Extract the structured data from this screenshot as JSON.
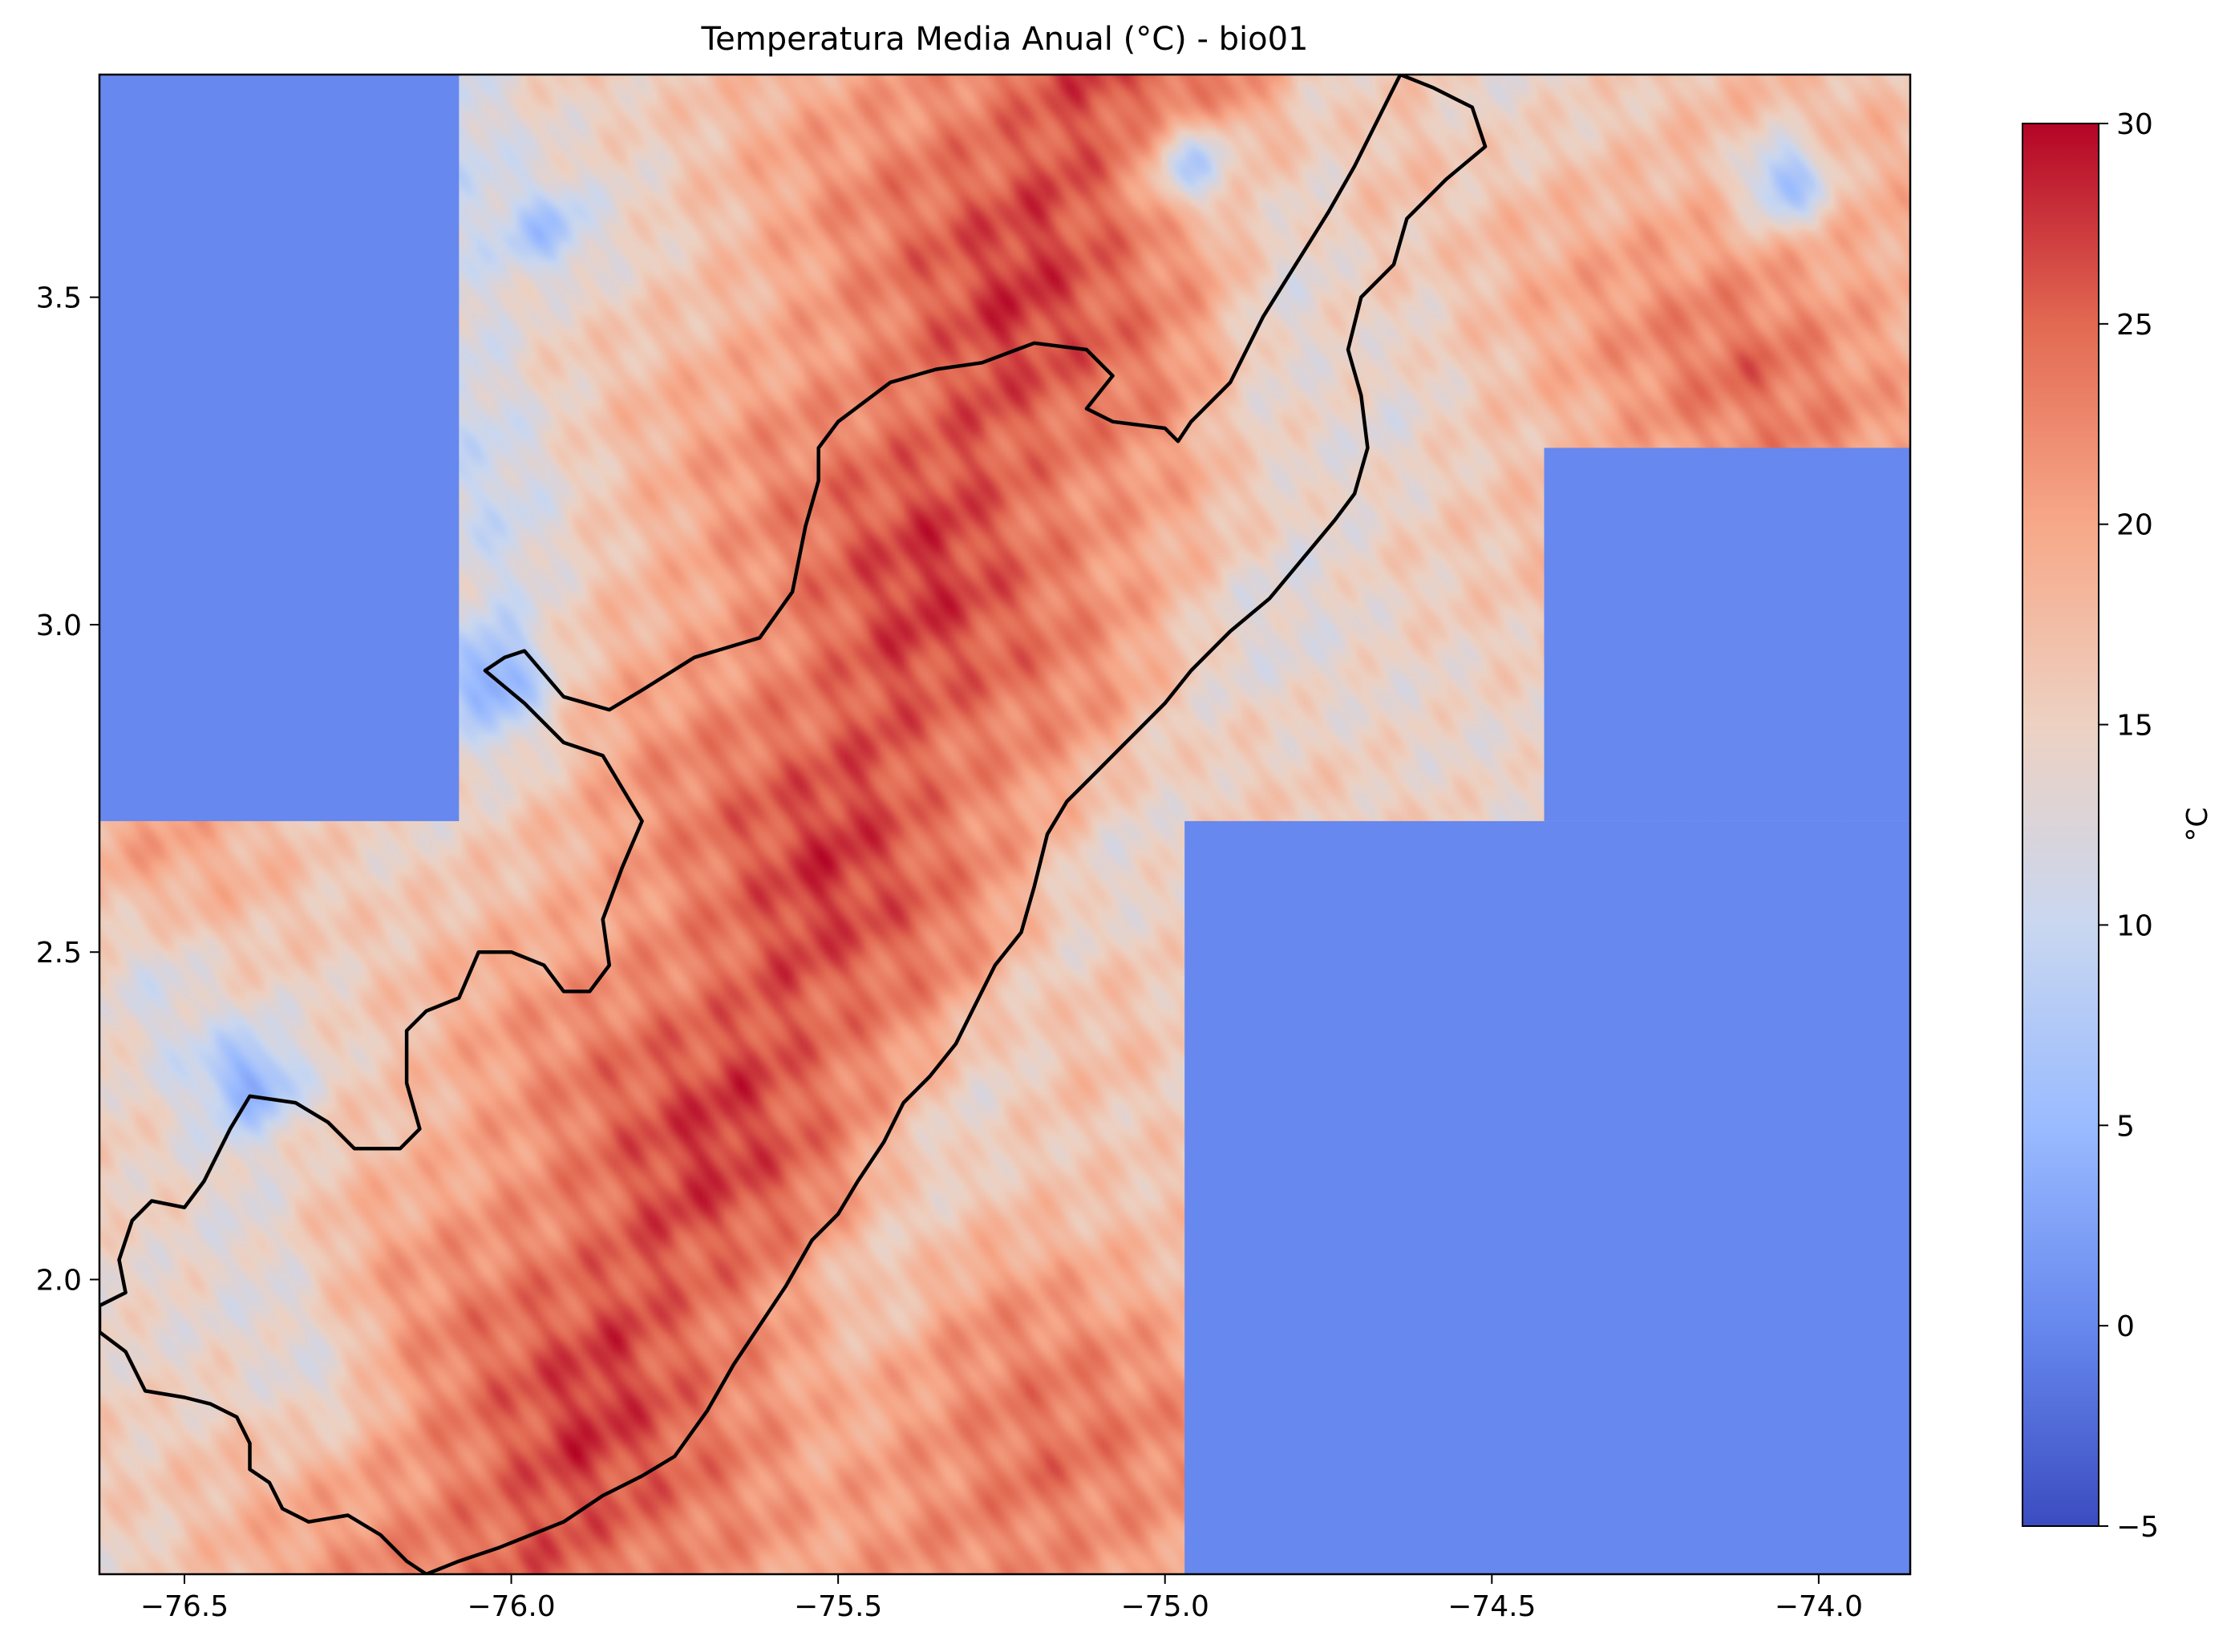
{
  "chart_data": {
    "type": "heatmap",
    "title": "Temperatura Media Anual (°C) - bio01",
    "xlabel": "",
    "ylabel": "",
    "xlim": [
      -76.63,
      -73.86
    ],
    "ylim": [
      1.55,
      3.84
    ],
    "x_ticks": [
      -76.5,
      -76.0,
      -75.5,
      -75.0,
      -74.5,
      -74.0
    ],
    "x_tick_labels": [
      "−76.5",
      "−76.0",
      "−75.5",
      "−75.0",
      "−74.5",
      "−74.0"
    ],
    "y_ticks": [
      2.0,
      2.5,
      3.0,
      3.5
    ],
    "y_tick_labels": [
      "2.0",
      "2.5",
      "3.0",
      "3.5"
    ],
    "colorbar": {
      "label": "°C",
      "min": -5,
      "max": 30,
      "ticks": [
        -5,
        0,
        5,
        10,
        15,
        20,
        25,
        30
      ],
      "tick_labels": [
        "−5",
        "0",
        "5",
        "10",
        "15",
        "20",
        "25",
        "30"
      ],
      "colormap": "coolwarm",
      "colormap_stops": [
        "#3b4cc0",
        "#6788ee",
        "#9abbff",
        "#c9d7f0",
        "#edd1c2",
        "#f7a889",
        "#e26952",
        "#b40426"
      ]
    },
    "nodata_value": 0,
    "nodata_color": "#6788ee",
    "nodata_blocks": [
      {
        "x": [
          -76.63,
          -76.08
        ],
        "y": [
          2.7,
          3.84
        ]
      },
      {
        "x": [
          -74.97,
          -73.86
        ],
        "y": [
          1.55,
          2.7
        ]
      },
      {
        "x": [
          -74.42,
          -73.86
        ],
        "y": [
          2.7,
          3.27
        ]
      }
    ],
    "temperature_field": {
      "ridge_axis": [
        [
          -75.12,
          3.84
        ],
        [
          -75.3,
          3.27
        ],
        [
          -75.45,
          2.8
        ],
        [
          -75.6,
          2.4
        ],
        [
          -75.8,
          2.0
        ],
        [
          -75.95,
          1.6
        ]
      ],
      "ridge_peak_c": 27,
      "cold_spots": [
        {
          "x": -76.03,
          "y": 2.92,
          "c": 2
        },
        {
          "x": -76.4,
          "y": 2.3,
          "c": 4
        },
        {
          "x": -75.95,
          "y": 3.6,
          "c": 7
        },
        {
          "x": -74.05,
          "y": 3.68,
          "c": 6
        },
        {
          "x": -74.95,
          "y": 3.7,
          "c": 9
        }
      ],
      "cold_bands": [
        {
          "from": [
            -76.1,
            3.8
          ],
          "to": [
            -76.0,
            2.85
          ],
          "c": 8
        },
        {
          "from": [
            -76.55,
            2.45
          ],
          "to": [
            -76.3,
            1.85
          ],
          "c": 10
        },
        {
          "from": [
            -74.7,
            3.27
          ],
          "to": [
            -75.45,
            2.0
          ],
          "c": 11
        },
        {
          "from": [
            -74.75,
            3.8
          ],
          "to": [
            -74.85,
            3.3
          ],
          "c": 10
        }
      ],
      "warm_plains": [
        {
          "x": -74.1,
          "y": 3.4,
          "c": 24
        },
        {
          "x": -75.2,
          "y": 1.7,
          "c": 25
        },
        {
          "x": -76.55,
          "y": 2.65,
          "c": 20
        }
      ]
    },
    "boundary_outline": {
      "color": "#000000",
      "points": [
        [
          -74.98,
          3.28
        ],
        [
          -75.0,
          3.3
        ],
        [
          -75.08,
          3.31
        ],
        [
          -75.12,
          3.33
        ],
        [
          -75.08,
          3.38
        ],
        [
          -75.12,
          3.42
        ],
        [
          -75.2,
          3.43
        ],
        [
          -75.28,
          3.4
        ],
        [
          -75.35,
          3.39
        ],
        [
          -75.42,
          3.37
        ],
        [
          -75.5,
          3.31
        ],
        [
          -75.53,
          3.27
        ],
        [
          -75.53,
          3.22
        ],
        [
          -75.55,
          3.15
        ],
        [
          -75.57,
          3.05
        ],
        [
          -75.62,
          2.98
        ],
        [
          -75.72,
          2.95
        ],
        [
          -75.8,
          2.9
        ],
        [
          -75.85,
          2.87
        ],
        [
          -75.92,
          2.89
        ],
        [
          -75.98,
          2.96
        ],
        [
          -76.01,
          2.95
        ],
        [
          -76.04,
          2.93
        ],
        [
          -75.98,
          2.88
        ],
        [
          -75.92,
          2.82
        ],
        [
          -75.86,
          2.8
        ],
        [
          -75.83,
          2.75
        ],
        [
          -75.8,
          2.7
        ],
        [
          -75.83,
          2.63
        ],
        [
          -75.86,
          2.55
        ],
        [
          -75.85,
          2.48
        ],
        [
          -75.88,
          2.44
        ],
        [
          -75.92,
          2.44
        ],
        [
          -75.95,
          2.48
        ],
        [
          -76.0,
          2.5
        ],
        [
          -76.05,
          2.5
        ],
        [
          -76.08,
          2.43
        ],
        [
          -76.13,
          2.41
        ],
        [
          -76.16,
          2.38
        ],
        [
          -76.16,
          2.3
        ],
        [
          -76.14,
          2.23
        ],
        [
          -76.17,
          2.2
        ],
        [
          -76.24,
          2.2
        ],
        [
          -76.28,
          2.24
        ],
        [
          -76.33,
          2.27
        ],
        [
          -76.4,
          2.28
        ],
        [
          -76.43,
          2.23
        ],
        [
          -76.47,
          2.15
        ],
        [
          -76.5,
          2.11
        ],
        [
          -76.55,
          2.12
        ],
        [
          -76.58,
          2.09
        ],
        [
          -76.6,
          2.03
        ],
        [
          -76.59,
          1.98
        ],
        [
          -76.63,
          1.96
        ],
        [
          -76.63,
          1.92
        ],
        [
          -76.59,
          1.89
        ],
        [
          -76.56,
          1.83
        ],
        [
          -76.5,
          1.82
        ],
        [
          -76.46,
          1.81
        ],
        [
          -76.42,
          1.79
        ],
        [
          -76.4,
          1.75
        ],
        [
          -76.4,
          1.71
        ],
        [
          -76.37,
          1.69
        ],
        [
          -76.35,
          1.65
        ],
        [
          -76.31,
          1.63
        ],
        [
          -76.25,
          1.64
        ],
        [
          -76.2,
          1.61
        ],
        [
          -76.16,
          1.57
        ],
        [
          -76.13,
          1.55
        ],
        [
          -76.08,
          1.57
        ],
        [
          -76.02,
          1.59
        ],
        [
          -75.97,
          1.61
        ],
        [
          -75.92,
          1.63
        ],
        [
          -75.86,
          1.67
        ],
        [
          -75.8,
          1.7
        ],
        [
          -75.75,
          1.73
        ],
        [
          -75.7,
          1.8
        ],
        [
          -75.66,
          1.87
        ],
        [
          -75.62,
          1.93
        ],
        [
          -75.58,
          1.99
        ],
        [
          -75.54,
          2.06
        ],
        [
          -75.5,
          2.1
        ],
        [
          -75.47,
          2.15
        ],
        [
          -75.43,
          2.21
        ],
        [
          -75.4,
          2.27
        ],
        [
          -75.36,
          2.31
        ],
        [
          -75.32,
          2.36
        ],
        [
          -75.29,
          2.42
        ],
        [
          -75.26,
          2.48
        ],
        [
          -75.22,
          2.53
        ],
        [
          -75.2,
          2.6
        ],
        [
          -75.18,
          2.68
        ],
        [
          -75.15,
          2.73
        ],
        [
          -75.1,
          2.78
        ],
        [
          -75.04,
          2.84
        ],
        [
          -75.0,
          2.88
        ],
        [
          -74.96,
          2.93
        ],
        [
          -74.9,
          2.99
        ],
        [
          -74.84,
          3.04
        ],
        [
          -74.79,
          3.1
        ],
        [
          -74.74,
          3.16
        ],
        [
          -74.71,
          3.2
        ],
        [
          -74.69,
          3.27
        ],
        [
          -74.7,
          3.35
        ],
        [
          -74.72,
          3.42
        ],
        [
          -74.7,
          3.5
        ],
        [
          -74.65,
          3.55
        ],
        [
          -74.63,
          3.62
        ],
        [
          -74.57,
          3.68
        ],
        [
          -74.51,
          3.73
        ],
        [
          -74.53,
          3.79
        ],
        [
          -74.59,
          3.82
        ],
        [
          -74.64,
          3.84
        ],
        [
          -74.67,
          3.78
        ],
        [
          -74.71,
          3.7
        ],
        [
          -74.75,
          3.63
        ],
        [
          -74.8,
          3.55
        ],
        [
          -74.85,
          3.47
        ],
        [
          -74.9,
          3.37
        ],
        [
          -74.96,
          3.31
        ],
        [
          -74.98,
          3.28
        ]
      ]
    }
  }
}
